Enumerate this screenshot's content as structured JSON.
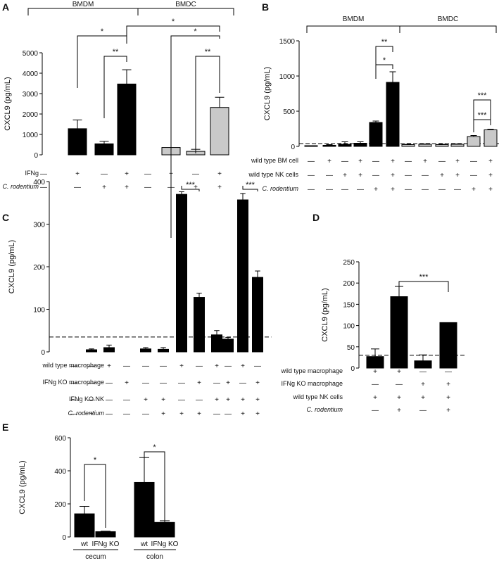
{
  "chart_data": [
    {
      "panel": "A",
      "type": "bar",
      "ylabel": "CXCL9 (pg/mL)",
      "ylim": [
        0,
        5000
      ],
      "yticks": [
        0,
        1000,
        2000,
        3000,
        4000,
        5000
      ],
      "groups": [
        "BMDM",
        "BMDC"
      ],
      "conditions": [
        {
          "label": "IFNg",
          "values": [
            "-",
            "+",
            "-",
            "+",
            "-",
            "+",
            "-",
            "+"
          ]
        },
        {
          "label": "C. rodentium",
          "values": [
            "-",
            "-",
            "+",
            "+",
            "-",
            "-",
            "+",
            "+"
          ]
        }
      ],
      "values": [
        0,
        1280,
        540,
        3470,
        0,
        360,
        170,
        2320
      ],
      "errors": [
        0,
        430,
        120,
        700,
        0,
        0,
        100,
        500
      ],
      "colors": [
        "#000000",
        "#000000",
        "#000000",
        "#000000",
        "#c9c9c9",
        "#c9c9c9",
        "#c9c9c9",
        "#c9c9c9"
      ],
      "significance": [
        "*",
        "**",
        "*",
        "*",
        "**"
      ]
    },
    {
      "panel": "B",
      "type": "bar",
      "ylabel": "CXCL9 (pg/mL)",
      "ylim": [
        0,
        1500
      ],
      "yticks": [
        0,
        500,
        1000,
        1500
      ],
      "threshold": 40,
      "groups": [
        "BMDM",
        "BMDC"
      ],
      "conditions": [
        {
          "label": "wild type BM cell",
          "values": [
            "-",
            "+",
            "-",
            "+",
            "-",
            "+",
            "-",
            "+",
            "-",
            "+",
            "-",
            "+"
          ]
        },
        {
          "label": "wild type NK cells",
          "values": [
            "-",
            "-",
            "+",
            "+",
            "-",
            "+",
            "-",
            "-",
            "+",
            "+",
            "-",
            "+"
          ]
        },
        {
          "label": "C. rodentium",
          "values": [
            "-",
            "-",
            "-",
            "-",
            "+",
            "+",
            "-",
            "-",
            "-",
            "-",
            "+",
            "+"
          ]
        }
      ],
      "values": [
        10,
        15,
        30,
        45,
        340,
        910,
        25,
        30,
        25,
        30,
        140,
        235
      ],
      "errors": [
        0,
        10,
        35,
        20,
        20,
        150,
        5,
        5,
        5,
        5,
        15,
        8
      ],
      "colors": [
        "#000000",
        "#000000",
        "#000000",
        "#000000",
        "#000000",
        "#000000",
        "#c9c9c9",
        "#c9c9c9",
        "#c9c9c9",
        "#c9c9c9",
        "#c9c9c9",
        "#c9c9c9"
      ],
      "significance": [
        "**",
        "*",
        "***",
        "***"
      ]
    },
    {
      "panel": "C",
      "type": "bar",
      "ylabel": "CXCL9 (pg/mL)",
      "ylim": [
        0,
        400
      ],
      "yticks": [
        0,
        100,
        200,
        300,
        400
      ],
      "threshold": 35,
      "conditions": [
        {
          "label": "wild type macrophage",
          "values": [
            "-",
            "-",
            "+",
            "-",
            "-",
            "-",
            "+",
            "-",
            "+",
            "-",
            "+",
            "-"
          ]
        },
        {
          "label": "IFNg KO macrophage",
          "values": [
            "-",
            "-",
            "-",
            "+",
            "-",
            "-",
            "-",
            "+",
            "-",
            "+",
            "-",
            "+"
          ]
        },
        {
          "label": "IFNg KO NK",
          "values": [
            "-",
            "-",
            "-",
            "-",
            "+",
            "+",
            "-",
            "-",
            "+",
            "+",
            "+",
            "+"
          ]
        },
        {
          "label": "C. rodentium",
          "values": [
            "-",
            "+",
            "-",
            "-",
            "-",
            "+",
            "+",
            "+",
            "-",
            "-",
            "+",
            "+"
          ]
        }
      ],
      "values": [
        0,
        5,
        10,
        0,
        7,
        6,
        370,
        128,
        40,
        30,
        357,
        175
      ],
      "errors": [
        0,
        2,
        6,
        0,
        3,
        4,
        6,
        10,
        10,
        4,
        15,
        15
      ],
      "significance": [
        "***",
        "***"
      ]
    },
    {
      "panel": "D",
      "type": "bar",
      "ylabel": "CXCL9 (pg/mL)",
      "ylim": [
        0,
        250
      ],
      "yticks": [
        0,
        50,
        100,
        150,
        200,
        250
      ],
      "threshold": 30,
      "conditions": [
        {
          "label": "wild type macrophage",
          "values": [
            "+",
            "+",
            "-",
            "-"
          ]
        },
        {
          "label": "IFNg KO macrophage",
          "values": [
            "-",
            "-",
            "+",
            "+"
          ]
        },
        {
          "label": "wild type NK cells",
          "values": [
            "+",
            "+",
            "+",
            "+"
          ]
        },
        {
          "label": "C. rodentium",
          "values": [
            "-",
            "+",
            "-",
            "+"
          ]
        }
      ],
      "values": [
        27,
        168,
        17,
        107
      ],
      "errors": [
        18,
        24,
        14,
        0
      ],
      "significance": [
        "***"
      ]
    },
    {
      "panel": "E",
      "type": "bar",
      "ylabel": "CXCL9 (pg/mL)",
      "ylim": [
        0,
        600
      ],
      "yticks": [
        0,
        200,
        400,
        600
      ],
      "categories": [
        "wt",
        "IFNg KO",
        "wt",
        "IFNg KO"
      ],
      "groups": [
        "cecum",
        "colon"
      ],
      "values": [
        140,
        32,
        330,
        88
      ],
      "errors": [
        45,
        3,
        150,
        10
      ],
      "significance": [
        "*",
        "*"
      ]
    }
  ]
}
